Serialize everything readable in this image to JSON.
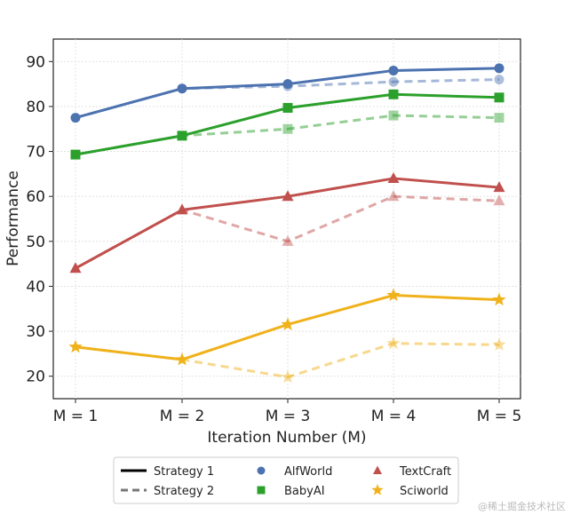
{
  "chart_data": {
    "type": "line",
    "xlabel": "Iteration Number (M)",
    "ylabel": "Performance",
    "categories": [
      "M = 1",
      "M = 2",
      "M = 3",
      "M = 4",
      "M = 5"
    ],
    "ylim": [
      15,
      95
    ],
    "yticks": [
      20,
      30,
      40,
      50,
      60,
      70,
      80,
      90
    ],
    "grid": true,
    "legend_placement": "below plot",
    "series": [
      {
        "name": "AlfWorld",
        "strategy": "Strategy 1",
        "marker": "circle",
        "color": "#4c72b0",
        "values": [
          77.5,
          84.0,
          85.0,
          88.0,
          88.5
        ]
      },
      {
        "name": "AlfWorld",
        "strategy": "Strategy 2",
        "marker": "circle",
        "color": "#4c72b0",
        "values": [
          77.5,
          84.0,
          84.5,
          85.5,
          86.0
        ]
      },
      {
        "name": "BabyAI",
        "strategy": "Strategy 1",
        "marker": "square",
        "color": "#2ca02c",
        "values": [
          69.3,
          73.5,
          79.7,
          82.7,
          82.0
        ]
      },
      {
        "name": "BabyAI",
        "strategy": "Strategy 2",
        "marker": "square",
        "color": "#2ca02c",
        "values": [
          69.3,
          73.5,
          75.0,
          78.0,
          77.5
        ]
      },
      {
        "name": "TextCraft",
        "strategy": "Strategy 1",
        "marker": "triangle",
        "color": "#c0504d",
        "values": [
          44.0,
          57.0,
          60.0,
          64.0,
          62.0
        ]
      },
      {
        "name": "TextCraft",
        "strategy": "Strategy 2",
        "marker": "triangle",
        "color": "#c0504d",
        "values": [
          44.0,
          57.0,
          50.0,
          60.0,
          59.0
        ]
      },
      {
        "name": "Sciworld",
        "strategy": "Strategy 1",
        "marker": "star",
        "color": "#f0b21b",
        "values": [
          26.5,
          23.7,
          31.5,
          38.0,
          37.0
        ]
      },
      {
        "name": "Sciworld",
        "strategy": "Strategy 2",
        "marker": "star",
        "color": "#f0b21b",
        "values": [
          26.5,
          23.7,
          19.8,
          27.3,
          27.0
        ]
      }
    ],
    "legend": {
      "strategy_1": "Strategy 1",
      "strategy_2": "Strategy 2",
      "alfworld": "AlfWorld",
      "babyai": "BabyAI",
      "textcraft": "TextCraft",
      "sciworld": "Sciworld"
    }
  },
  "watermark": "@稀土掘金技术社区"
}
